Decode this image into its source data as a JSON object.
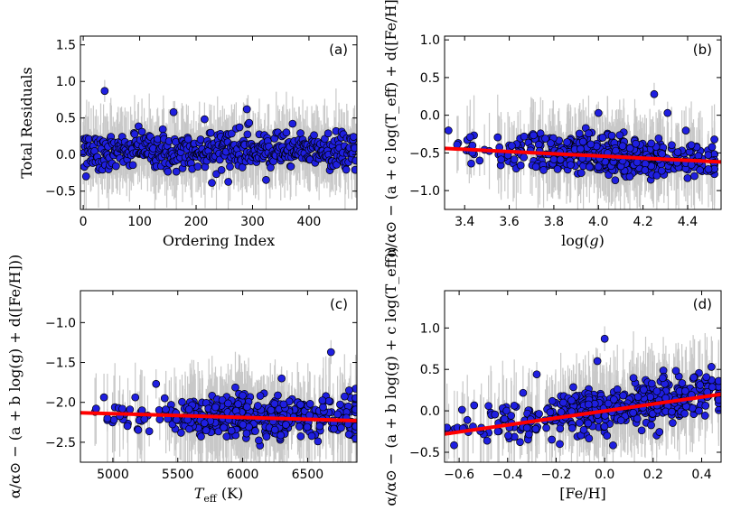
{
  "chart_data": [
    {
      "id": "a",
      "type": "scatter",
      "panel_label": "(a)",
      "xlabel": "Ordering Index",
      "ylabel": "Total Residuals",
      "xlim": [
        -5,
        485
      ],
      "ylim": [
        -0.75,
        1.62
      ],
      "xticks": [
        0,
        100,
        200,
        300,
        400
      ],
      "xtick_labels": [
        "0",
        "100",
        "200",
        "300",
        "400"
      ],
      "yticks": [
        -0.5,
        0.0,
        0.5,
        1.0,
        1.5
      ],
      "ytick_labels": [
        "−0.5",
        "0.0",
        "0.5",
        "1.0",
        "1.5"
      ],
      "n_points": 484,
      "x_range": [
        0,
        483
      ],
      "y_center": 0.05,
      "y_spread": 0.13,
      "error_bar_spread": 0.45,
      "outliers": [
        {
          "x": 38,
          "y": 0.87
        },
        {
          "x": 290,
          "y": 0.62
        },
        {
          "x": 160,
          "y": 0.58
        }
      ],
      "fit": null
    },
    {
      "id": "b",
      "type": "scatter",
      "panel_label": "(b)",
      "xlabel": "log(g)",
      "ylabel": "α/α⊙ − (a + c log(T_eff) + d([Fe/H]))",
      "xlim": [
        3.31,
        4.55
      ],
      "ylim": [
        -1.25,
        1.05
      ],
      "xticks": [
        3.4,
        3.6,
        3.8,
        4.0,
        4.2,
        4.4
      ],
      "xtick_labels": [
        "3.4",
        "3.6",
        "3.8",
        "4.0",
        "4.2",
        "4.4"
      ],
      "yticks": [
        -1.0,
        -0.5,
        0.0,
        0.5,
        1.0
      ],
      "ytick_labels": [
        "−1.0",
        "−0.5",
        "0.0",
        "0.5",
        "1.0"
      ],
      "n_points": 484,
      "x_range": [
        3.32,
        4.52
      ],
      "y_center": -0.5,
      "y_spread": 0.13,
      "error_bar_spread": 0.45,
      "outliers": [
        {
          "x": 4.25,
          "y": 0.28
        },
        {
          "x": 4.31,
          "y": 0.03
        },
        {
          "x": 4.0,
          "y": 0.03
        }
      ],
      "fit": {
        "x": [
          3.31,
          4.55
        ],
        "y": [
          -0.44,
          -0.62
        ]
      }
    },
    {
      "id": "c",
      "type": "scatter",
      "panel_label": "(c)",
      "xlabel": "T_eff (K)",
      "ylabel": "α/α⊙ − (a + b log(g) + d([Fe/H]))",
      "xlim": [
        4750,
        6880
      ],
      "ylim": [
        -2.75,
        -0.6
      ],
      "xticks": [
        5000,
        5500,
        6000,
        6500
      ],
      "xtick_labels": [
        "5000",
        "5500",
        "6000",
        "6500"
      ],
      "yticks": [
        -2.5,
        -2.0,
        -1.5,
        -1.0
      ],
      "ytick_labels": [
        "−2.5",
        "−2.0",
        "−1.5",
        "−1.0"
      ],
      "n_points": 484,
      "x_range": [
        4760,
        6870
      ],
      "y_center": -2.1,
      "y_spread": 0.13,
      "error_bar_spread": 0.45,
      "outliers": [
        {
          "x": 6680,
          "y": -1.37
        },
        {
          "x": 6300,
          "y": -1.7
        },
        {
          "x": 6820,
          "y": -1.85
        }
      ],
      "fit": {
        "x": [
          4750,
          6880
        ],
        "y": [
          -2.13,
          -2.23
        ]
      }
    },
    {
      "id": "d",
      "type": "scatter",
      "panel_label": "(d)",
      "xlabel": "[Fe/H]",
      "ylabel": "α/α⊙ − (a + b log(g) + c log(T_eff))",
      "xlim": [
        -0.66,
        0.48
      ],
      "ylim": [
        -0.62,
        1.45
      ],
      "xticks": [
        -0.6,
        -0.4,
        -0.2,
        0.0,
        0.2,
        0.4
      ],
      "xtick_labels": [
        "−0.6",
        "−0.4",
        "−0.2",
        "0.0",
        "0.2",
        "0.4"
      ],
      "yticks": [
        -0.5,
        0.0,
        0.5,
        1.0
      ],
      "ytick_labels": [
        "−0.5",
        "0.0",
        "0.5",
        "1.0"
      ],
      "n_points": 484,
      "x_range": [
        -0.65,
        0.47
      ],
      "y_center": 0.05,
      "y_spread": 0.13,
      "error_bar_spread": 0.45,
      "outliers": [
        {
          "x": 0.0,
          "y": 0.87
        },
        {
          "x": -0.03,
          "y": 0.6
        },
        {
          "x": -0.28,
          "y": 0.44
        }
      ],
      "fit": {
        "x": [
          -0.66,
          0.48
        ],
        "y": [
          -0.28,
          0.2
        ]
      }
    }
  ],
  "colors": {
    "marker": "#1f1fe0",
    "fit_line": "#ff0000",
    "error_bar": "#c8c8c8"
  }
}
